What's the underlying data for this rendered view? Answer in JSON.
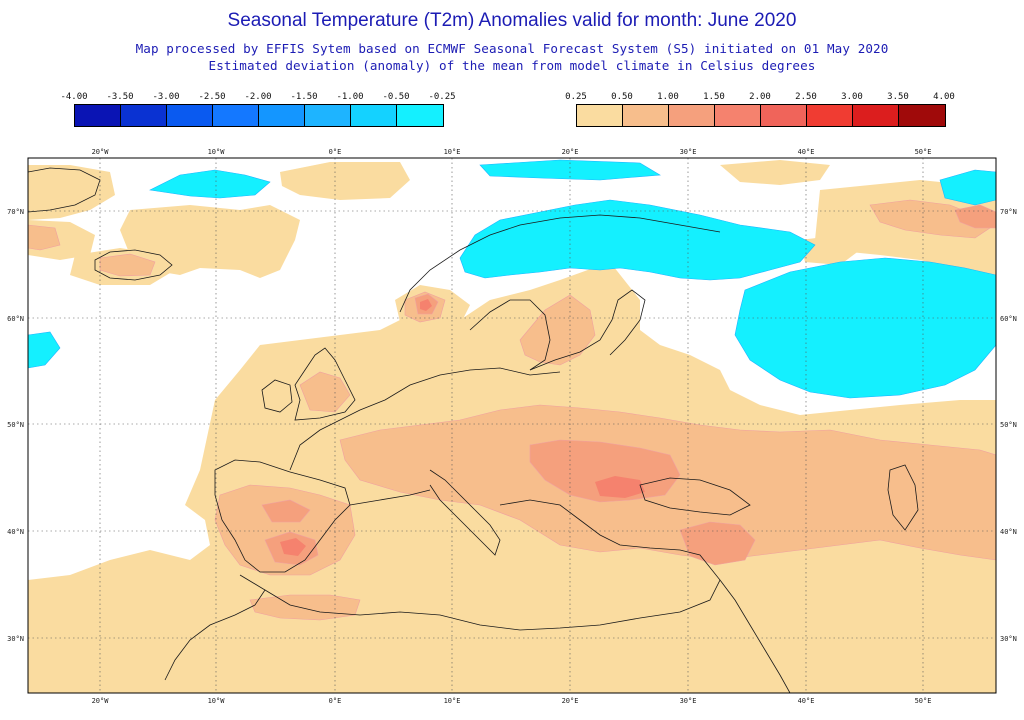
{
  "header": {
    "title": "Seasonal Temperature (T2m) Anomalies valid for month: June 2020",
    "subtitle1": "Map processed by EFFIS Sytem based on ECMWF Seasonal Forecast System (S5) initiated on 01 May 2020",
    "subtitle2": "Estimated deviation (anomaly) of the mean from model climate in Celsius degrees"
  },
  "colorbar_negative": {
    "labels": [
      "-4.00",
      "-3.50",
      "-3.00",
      "-2.50",
      "-2.00",
      "-1.50",
      "-1.00",
      "-0.50",
      "-0.25"
    ],
    "colors": [
      "#0a14b4",
      "#0a32d2",
      "#0a5af0",
      "#1478ff",
      "#1496ff",
      "#1eb4ff",
      "#14d2ff",
      "#14f0ff"
    ]
  },
  "colorbar_positive": {
    "labels": [
      "0.25",
      "0.50",
      "1.00",
      "1.50",
      "2.00",
      "2.50",
      "3.00",
      "3.50",
      "4.00"
    ],
    "colors": [
      "#fadca0",
      "#f7be8c",
      "#f5a07d",
      "#f5826e",
      "#f0645a",
      "#f03c32",
      "#dc1e1e",
      "#a00a0a"
    ]
  },
  "map": {
    "lon_labels": [
      "20°W",
      "10°W",
      "0°E",
      "10°E",
      "20°E",
      "30°E",
      "40°E",
      "50°E"
    ],
    "lat_labels": [
      "70°N",
      "60°N",
      "50°N",
      "40°N",
      "30°N"
    ],
    "colors": {
      "background": "#ffffff",
      "warm1": "#fadca0",
      "warm2": "#f7be8c",
      "warm3": "#f5a07d",
      "warm4": "#f5826e",
      "cold1": "#14f0ff",
      "cold2": "#1eb4ff",
      "coast": "#1a1a1a",
      "grid": "#555555"
    }
  }
}
